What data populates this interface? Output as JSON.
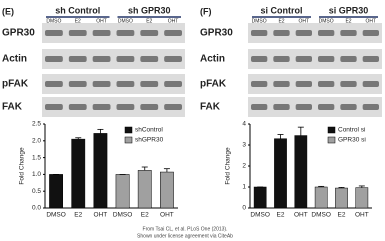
{
  "blots": [
    {
      "label": "(E)",
      "groups": [
        "sh Control",
        "sh GPR30"
      ],
      "lanes": [
        "DMSO",
        "E2",
        "OHT",
        "DMSO",
        "E2",
        "OHT"
      ],
      "rows": [
        "GPR30",
        "Actin",
        "pFAK",
        "FAK"
      ]
    },
    {
      "label": "(F)",
      "groups": [
        "si Control",
        "si GPR30"
      ],
      "lanes": [
        "DMSO",
        "E2",
        "OHT",
        "DMSO",
        "E2",
        "OHT"
      ],
      "rows": [
        "GPR30",
        "Actin",
        "pFAK",
        "FAK"
      ]
    }
  ],
  "chart_data": [
    {
      "type": "bar",
      "ylabel": "Fold Change",
      "categories": [
        "DMSO",
        "E2",
        "OHT",
        "DMSO",
        "E2",
        "OHT"
      ],
      "series": [
        {
          "name": "shControl",
          "color": "#111111",
          "values": [
            1.0,
            2.05,
            2.22,
            null,
            null,
            null
          ],
          "errors": [
            0,
            0.04,
            0.12,
            null,
            null,
            null
          ]
        },
        {
          "name": "shGPR30",
          "color": "#a0a0a0",
          "values": [
            null,
            null,
            null,
            1.0,
            1.12,
            1.07
          ],
          "errors": [
            null,
            null,
            null,
            0,
            0.1,
            0.1
          ]
        }
      ],
      "ylim": [
        0,
        2.5
      ],
      "yticks": [
        {
          "value": 0,
          "label": "0.0"
        },
        {
          "value": 0.5,
          "label": "0.5"
        },
        {
          "value": 1,
          "label": "1.0"
        },
        {
          "value": 1.5,
          "label": "1.5"
        },
        {
          "value": 2,
          "label": "2.0"
        },
        {
          "value": 2.5,
          "label": "2.5"
        }
      ],
      "legend": "top-right"
    },
    {
      "type": "bar",
      "ylabel": "Fold Change",
      "categories": [
        "DMSO",
        "E2",
        "OHT",
        "DMSO",
        "E2",
        "OHT"
      ],
      "series": [
        {
          "name": "Control si",
          "color": "#111111",
          "values": [
            1.0,
            3.3,
            3.45,
            null,
            null,
            null
          ],
          "errors": [
            0,
            0.2,
            0.4,
            null,
            null,
            null
          ]
        },
        {
          "name": "GPR30 si",
          "color": "#a0a0a0",
          "values": [
            null,
            null,
            null,
            1.0,
            0.95,
            0.97
          ],
          "errors": [
            null,
            null,
            null,
            0.03,
            0.03,
            0.08
          ]
        }
      ],
      "ylim": [
        0,
        4
      ],
      "yticks": [
        0,
        1,
        2,
        3,
        4
      ],
      "legend": "top-right"
    }
  ],
  "credit": [
    "From Tsai CL, et al. PLoS One (2013).",
    "Shown under license agreement via CiteAb"
  ]
}
